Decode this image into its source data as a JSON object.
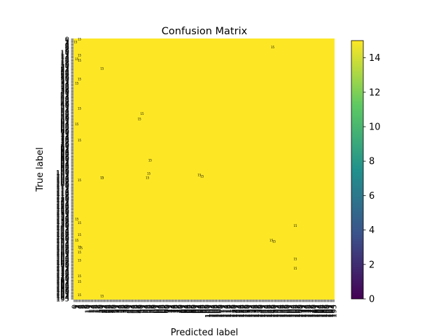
{
  "figure": {
    "title": "Confusion Matrix",
    "xlabel": "Predicted label",
    "ylabel": "True label"
  },
  "chart_data": {
    "type": "heatmap",
    "title": "Confusion Matrix",
    "xlabel": "Predicted label",
    "ylabel": "True label",
    "n_classes": 196,
    "x_ticks": [
      0,
      195
    ],
    "y_ticks": [
      0,
      195
    ],
    "grid": false,
    "colormap": "viridis",
    "colormap_colors": [
      "#440154",
      "#3b528b",
      "#21918c",
      "#5ec962",
      "#fde725"
    ],
    "background_color": "#fde725",
    "colorbar": {
      "range": [
        0,
        15
      ],
      "ticks": [
        0,
        2,
        4,
        6,
        8,
        10,
        12,
        14
      ],
      "placement": "right"
    },
    "note": "All visible cells read at the colorbar maximum (about 15); small dark marks are overlapping per-cell count annotations.",
    "visible_annotations": [
      {
        "row": 0,
        "col": 4,
        "value": 15
      },
      {
        "row": 2,
        "col": 1,
        "value": 15
      },
      {
        "row": 6,
        "col": 149,
        "value": 15
      },
      {
        "row": 12,
        "col": 4,
        "value": 15
      },
      {
        "row": 15,
        "col": 2,
        "value": 15
      },
      {
        "row": 16,
        "col": 4,
        "value": 15
      },
      {
        "row": 22,
        "col": 21,
        "value": 15
      },
      {
        "row": 30,
        "col": 4,
        "value": 15
      },
      {
        "row": 33,
        "col": 2,
        "value": 15
      },
      {
        "row": 52,
        "col": 4,
        "value": 15
      },
      {
        "row": 56,
        "col": 51,
        "value": 15
      },
      {
        "row": 60,
        "col": 49,
        "value": 15
      },
      {
        "row": 64,
        "col": 2,
        "value": 15
      },
      {
        "row": 76,
        "col": 4,
        "value": 15
      },
      {
        "row": 91,
        "col": 57,
        "value": 15
      },
      {
        "row": 101,
        "col": 56,
        "value": 15
      },
      {
        "row": 102,
        "col": 94,
        "value": 15
      },
      {
        "row": 103,
        "col": 96,
        "value": 15
      },
      {
        "row": 104,
        "col": 21,
        "value": 15
      },
      {
        "row": 104,
        "col": 55,
        "value": 15
      },
      {
        "row": 104,
        "col": 21,
        "value": 15
      },
      {
        "row": 106,
        "col": 4,
        "value": 15
      },
      {
        "row": 135,
        "col": 2,
        "value": 15
      },
      {
        "row": 138,
        "col": 4,
        "value": 15
      },
      {
        "row": 140,
        "col": 166,
        "value": 15
      },
      {
        "row": 147,
        "col": 4,
        "value": 15
      },
      {
        "row": 151,
        "col": 148,
        "value": 15
      },
      {
        "row": 151,
        "col": 2,
        "value": 15
      },
      {
        "row": 152,
        "col": 150,
        "value": 15
      },
      {
        "row": 156,
        "col": 4,
        "value": 15
      },
      {
        "row": 157,
        "col": 5,
        "value": 15
      },
      {
        "row": 160,
        "col": 4,
        "value": 15
      },
      {
        "row": 165,
        "col": 166,
        "value": 15
      },
      {
        "row": 166,
        "col": 4,
        "value": 15
      },
      {
        "row": 172,
        "col": 166,
        "value": 15
      },
      {
        "row": 178,
        "col": 4,
        "value": 15
      },
      {
        "row": 182,
        "col": 4,
        "value": 15
      },
      {
        "row": 192,
        "col": 4,
        "value": 15
      },
      {
        "row": 193,
        "col": 21,
        "value": 15
      }
    ]
  }
}
